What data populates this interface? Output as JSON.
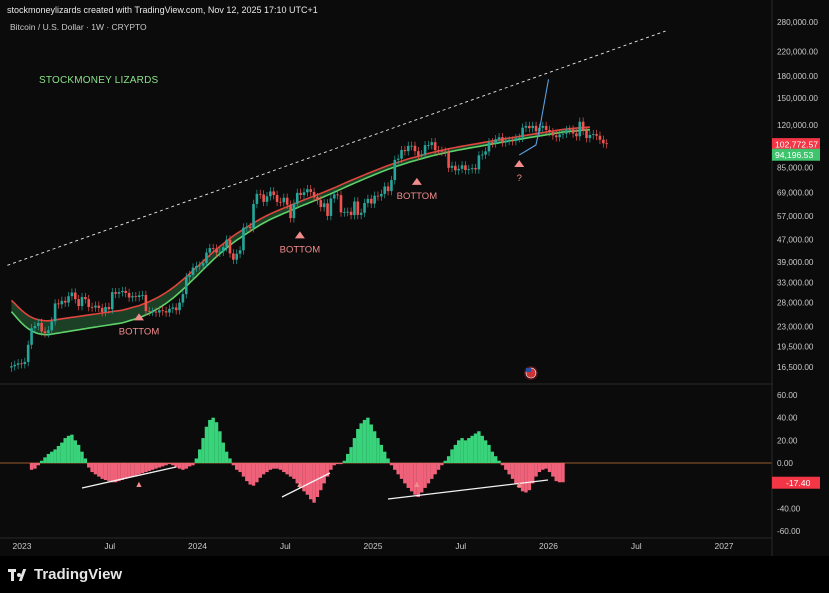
{
  "header": {
    "attribution": "stockmoneylizards created with TradingView.com, Nov 12, 2025 17:10 UTC+1",
    "symbol": "Bitcoin / U.S. Dollar · 1W · CRYPTO"
  },
  "branding": {
    "watermark": "STOCKMONEY LIZARDS",
    "footer_logo": "TradingView"
  },
  "colors": {
    "up": "#26a69a",
    "down": "#ef5350",
    "band_fill": "#1f4a2c",
    "band_upper": "#e0443c",
    "band_lower": "#5fd36a",
    "histo_pos": "#38d37a",
    "histo_neg": "#f0627a",
    "zero_line": "#c8783a",
    "projection": "#5aa0e0",
    "annotation": "#f28c8c"
  },
  "chart_data": [
    {
      "type": "candlestick",
      "title": "Bitcoin / U.S. Dollar · 1W · CRYPTO",
      "x_ticks": [
        "2023",
        "Jul",
        "2024",
        "Jul",
        "2025",
        "Jul",
        "2026",
        "Jul",
        "2027"
      ],
      "y_scale": "log",
      "y_ticks": [
        280000,
        220000,
        180000,
        150000,
        120000,
        102772.57,
        94196.53,
        85000,
        69000,
        57000,
        47000,
        39000,
        33000,
        28000,
        23000,
        19500,
        16500
      ],
      "y_tick_labels": [
        "280,000.00",
        "220,000.00",
        "180,000.00",
        "150,000.00",
        "120,000.00",
        "85,000.00",
        "69,000.00",
        "57,000.00",
        "47,000.00",
        "39,000.00",
        "33,000.00",
        "28,000.00",
        "23,000.00",
        "19,500.00",
        "16,500.00"
      ],
      "price_labels": [
        {
          "label": "102,772.57",
          "value": 102772.57,
          "color": "#f23645"
        },
        {
          "label": "94,196.53",
          "value": 94196.53,
          "color": "#3ec46d"
        }
      ],
      "annotations": [
        {
          "text": "BOTTOM",
          "x": "2023-09",
          "y": 25000
        },
        {
          "text": "BOTTOM",
          "x": "2024-08",
          "y": 49000
        },
        {
          "text": "BOTTOM",
          "x": "2025-04",
          "y": 76000
        },
        {
          "text": "?",
          "x": "2025-11",
          "y": 88000
        }
      ],
      "weekly_close": [
        16600,
        16800,
        17000,
        16900,
        17200,
        19800,
        22700,
        23100,
        23700,
        22100,
        21800,
        22300,
        24000,
        27800,
        27600,
        28400,
        28000,
        29500,
        30400,
        28800,
        27200,
        29300,
        28800,
        27000,
        26900,
        27300,
        26800,
        25900,
        27000,
        26500,
        30500,
        30100,
        30500,
        30800,
        30300,
        29200,
        29500,
        29300,
        29700,
        29800,
        26100,
        26000,
        26000,
        25800,
        26300,
        26100,
        25800,
        26600,
        26900,
        26300,
        28000,
        30000,
        34500,
        35100,
        37300,
        37800,
        37900,
        38700,
        42200,
        43800,
        43600,
        42200,
        42500,
        44100,
        46900,
        41900,
        39800,
        41800,
        43000,
        51800,
        52100,
        51600,
        62900,
        68300,
        68000,
        64000,
        67000,
        69700,
        67700,
        64000,
        63800,
        66200,
        62500,
        56000,
        63000,
        68900,
        67700,
        69200,
        71000,
        69400,
        66500,
        64900,
        61300,
        63200,
        57000,
        65800,
        68000,
        67600,
        58700,
        58900,
        59000,
        57400,
        64200,
        57500,
        58500,
        63400,
        65600,
        63100,
        67300,
        66900,
        68300,
        72600,
        69900,
        76500,
        90300,
        91200,
        97900,
        97000,
        101300,
        101400,
        97000,
        93600,
        94500,
        101900,
        102000,
        104400,
        97900,
        97500,
        96700,
        96100,
        84600,
        86000,
        82900,
        83900,
        86400,
        83100,
        83700,
        84400,
        83500,
        93700,
        94300,
        96800,
        104400,
        103400,
        107000,
        108800,
        104200,
        105600,
        105700,
        105400,
        107900,
        108400,
        117600,
        119300,
        117200,
        119400,
        114200,
        117500,
        119300,
        115400,
        113500,
        110400,
        108800,
        111200,
        112000,
        115300,
        115800,
        112200,
        109600,
        123500,
        114800,
        108000,
        110800,
        111600,
        110100,
        106500,
        103500,
        102772
      ],
      "band_upper": [
        28500,
        27800,
        27000,
        26300,
        25700,
        25200,
        24800,
        24500,
        24300,
        24200,
        24100,
        24100,
        24200,
        24300,
        24400,
        24500,
        24600,
        24700,
        24800,
        24900,
        25000,
        25100,
        25200,
        25300,
        25400,
        25500,
        25600,
        25700,
        25800,
        25900,
        26000,
        26100,
        26200,
        26300,
        26500,
        26700,
        26900,
        27100,
        27300,
        27600,
        27900,
        28200,
        28600,
        29000,
        29400,
        29900,
        30400,
        31000,
        31600,
        32300,
        33000,
        33800,
        34600,
        35500,
        36400,
        37300,
        38300,
        39300,
        40300,
        41300,
        42400,
        43400,
        44400,
        45400,
        46400,
        47400,
        48400,
        49300,
        50200,
        51100,
        52000,
        52900,
        53800,
        54700,
        55600,
        56400,
        57200,
        58000,
        58700,
        59400,
        60100,
        60800,
        61500,
        62200,
        62900,
        63600,
        64300,
        65000,
        65700,
        66400,
        67100,
        67800,
        68600,
        69400,
        70200,
        71000,
        71800,
        72700,
        73600,
        74500,
        75400,
        76300,
        77200,
        78100,
        79000,
        79900,
        80800,
        81700,
        82600,
        83500,
        84400,
        85300,
        86200,
        87000,
        87800,
        88600,
        89400,
        90200,
        91000,
        91700,
        92400,
        93100,
        93800,
        94500,
        95200,
        95900,
        96500,
        97100,
        97700,
        98300,
        98900,
        99500,
        100000,
        100500,
        101000,
        101500,
        102000,
        102500,
        103000,
        103500,
        104000,
        104500,
        105000,
        105500,
        106000,
        106500,
        107000,
        107500,
        108000,
        108500,
        109000,
        109500,
        110000,
        110500,
        111000,
        111500,
        112000,
        112500,
        113000,
        113500,
        114000,
        114500,
        115000,
        115500,
        116000,
        116300,
        116600,
        116900,
        117200,
        117500,
        117800,
        118000,
        118200
      ],
      "band_lower": [
        26000,
        25200,
        24400,
        23700,
        23100,
        22600,
        22200,
        21900,
        21700,
        21600,
        21500,
        21500,
        21600,
        21700,
        21800,
        21900,
        22000,
        22100,
        22200,
        22300,
        22400,
        22500,
        22600,
        22700,
        22800,
        22900,
        23000,
        23100,
        23200,
        23300,
        23400,
        23500,
        23600,
        23700,
        23900,
        24100,
        24300,
        24500,
        24700,
        25000,
        25300,
        25600,
        26000,
        26400,
        26800,
        27300,
        27800,
        28400,
        29000,
        29700,
        30400,
        31200,
        32000,
        32900,
        33800,
        34700,
        35700,
        36700,
        37700,
        38700,
        39800,
        40800,
        41800,
        42800,
        43800,
        44800,
        45800,
        46700,
        47600,
        48500,
        49400,
        50300,
        51200,
        52100,
        53000,
        53800,
        54600,
        55400,
        56100,
        56800,
        57500,
        58200,
        58900,
        59600,
        60300,
        61000,
        61700,
        62400,
        63100,
        63800,
        64500,
        65200,
        66000,
        66800,
        67600,
        68400,
        69200,
        70100,
        71000,
        71900,
        72800,
        73700,
        74600,
        75500,
        76400,
        77300,
        78200,
        79100,
        80000,
        80900,
        81800,
        82700,
        83600,
        84400,
        85200,
        86000,
        86800,
        87600,
        88400,
        89100,
        89800,
        90500,
        91200,
        91900,
        92600,
        93300,
        93900,
        94500,
        95100,
        95700,
        96300,
        96900,
        97400,
        97900,
        98400,
        98900,
        99400,
        99900,
        100400,
        100900,
        101400,
        101900,
        102400,
        102900,
        103400,
        103900,
        104400,
        104900,
        105400,
        105900,
        106400,
        106900,
        107400,
        107900,
        108400,
        108900,
        109400,
        109900,
        110400,
        110900,
        111400,
        111900,
        112400,
        112900,
        113400,
        113700,
        114000,
        114300,
        114600,
        114900,
        115200,
        115400,
        115600
      ],
      "trendline": {
        "from": {
          "x": "2022-12",
          "y": 38000
        },
        "to": {
          "x": "2026-09",
          "y": 260000
        }
      },
      "projection": [
        {
          "x": "2025-11",
          "y": 94000
        },
        {
          "x": "2025-12",
          "y": 102000
        },
        {
          "x": "2025-12",
          "y": 118000
        },
        {
          "x": "2026-01",
          "y": 175000
        }
      ]
    },
    {
      "type": "bar",
      "title": "",
      "y_ticks": [
        60,
        40,
        20,
        0,
        -20,
        -40,
        -60
      ],
      "y_tick_labels": [
        "60.00",
        "40.00",
        "20.00",
        "0.00",
        "-20.00",
        "-40.00",
        "-60.00"
      ],
      "ylim": [
        -66,
        66
      ],
      "last_value_label": "-17.40",
      "values": [
        -6,
        -5,
        -2,
        2,
        5,
        8,
        10,
        12,
        15,
        18,
        22,
        24,
        25,
        20,
        16,
        10,
        4,
        -4,
        -8,
        -10,
        -12,
        -14,
        -15,
        -16,
        -17,
        -17,
        -16,
        -15,
        -14,
        -13,
        -12,
        -11,
        -10,
        -9,
        -8,
        -7,
        -6,
        -5,
        -4,
        -3,
        -2,
        -1,
        -2,
        -4,
        -5,
        -6,
        -5,
        -3,
        -2,
        4,
        12,
        22,
        32,
        38,
        40,
        36,
        28,
        18,
        10,
        4,
        -2,
        -6,
        -8,
        -12,
        -16,
        -19,
        -20,
        -17,
        -13,
        -10,
        -8,
        -6,
        -5,
        -5,
        -6,
        -8,
        -10,
        -12,
        -14,
        -18,
        -22,
        -25,
        -28,
        -32,
        -35,
        -30,
        -24,
        -18,
        -12,
        -6,
        -2,
        -1,
        -1,
        2,
        8,
        14,
        22,
        30,
        35,
        38,
        40,
        34,
        28,
        22,
        16,
        10,
        4,
        -2,
        -6,
        -10,
        -14,
        -18,
        -22,
        -25,
        -28,
        -30,
        -26,
        -22,
        -18,
        -14,
        -10,
        -6,
        -2,
        2,
        6,
        12,
        16,
        20,
        22,
        20,
        22,
        24,
        26,
        28,
        24,
        20,
        16,
        10,
        6,
        2,
        -2,
        -6,
        -10,
        -14,
        -18,
        -22,
        -25,
        -26,
        -24,
        -18,
        -12,
        -8,
        -6,
        -5,
        -8,
        -12,
        -16,
        -17,
        -17
      ],
      "annotations": [
        {
          "text": "▲",
          "x": "2023-09"
        },
        {
          "text": "▲",
          "x": "2024-08"
        },
        {
          "text": "▲",
          "x": "2025-04"
        },
        {
          "text": "▲",
          "x": "2025-11"
        }
      ]
    }
  ]
}
